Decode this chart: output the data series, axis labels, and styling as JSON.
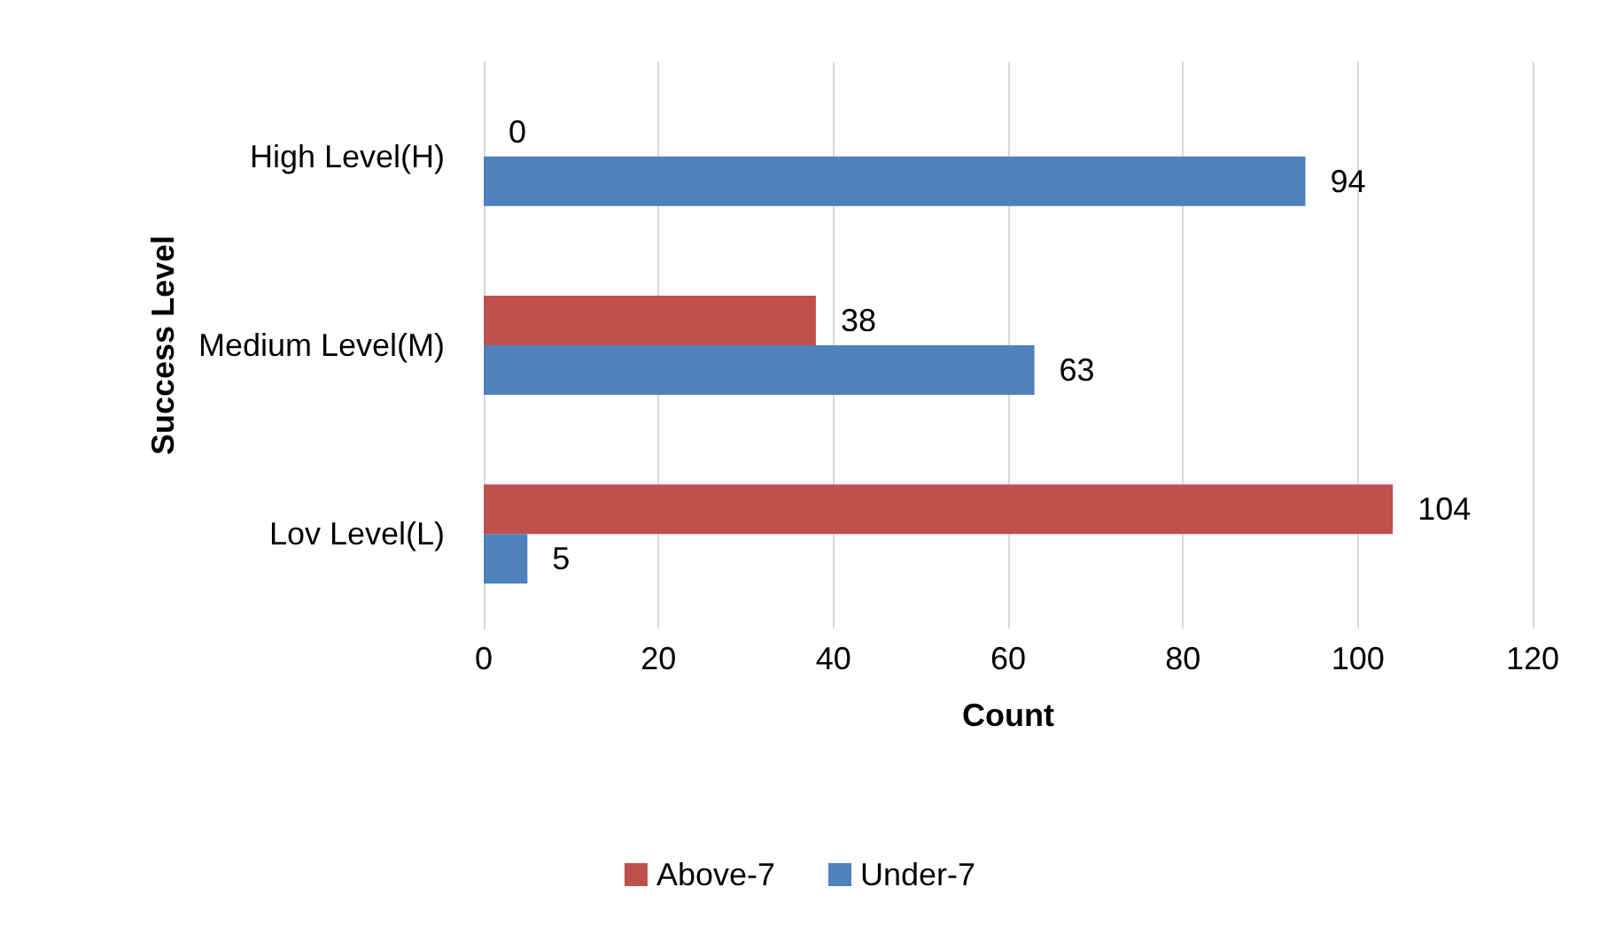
{
  "chart_data": {
    "type": "bar",
    "orientation": "horizontal",
    "xlabel": "Count",
    "ylabel": "Success Level",
    "categories": [
      "High Level(H)",
      "Medium Level(M)",
      "Lov Level(L)"
    ],
    "series": [
      {
        "name": "Above-7",
        "color": "#c0504d",
        "values": [
          0,
          38,
          104
        ]
      },
      {
        "name": "Under-7",
        "color": "#4f81bd",
        "values": [
          94,
          63,
          5
        ]
      }
    ],
    "xlim": [
      0,
      120
    ],
    "xticks": [
      0,
      20,
      40,
      60,
      80,
      100,
      120
    ],
    "grid": "x",
    "legend": "bottom",
    "data_labels": true
  }
}
